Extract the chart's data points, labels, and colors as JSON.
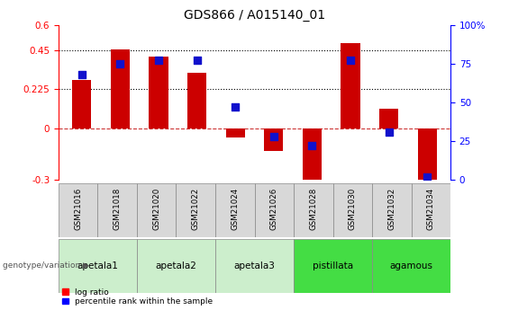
{
  "title": "GDS866 / A015140_01",
  "samples": [
    "GSM21016",
    "GSM21018",
    "GSM21020",
    "GSM21022",
    "GSM21024",
    "GSM21026",
    "GSM21028",
    "GSM21030",
    "GSM21032",
    "GSM21034"
  ],
  "log_ratio": [
    0.28,
    0.455,
    0.415,
    0.32,
    -0.055,
    -0.135,
    -0.34,
    0.495,
    0.115,
    -0.345
  ],
  "percentile_rank": [
    68,
    75,
    77,
    77,
    47,
    28,
    22,
    77,
    31,
    2
  ],
  "group_defs": [
    {
      "name": "apetala1",
      "cols": [
        0,
        1
      ],
      "color": "#cceecc"
    },
    {
      "name": "apetala2",
      "cols": [
        2,
        3
      ],
      "color": "#cceecc"
    },
    {
      "name": "apetala3",
      "cols": [
        4,
        5
      ],
      "color": "#cceecc"
    },
    {
      "name": "pistillata",
      "cols": [
        6,
        7
      ],
      "color": "#44dd44"
    },
    {
      "name": "agamous",
      "cols": [
        8,
        9
      ],
      "color": "#44dd44"
    }
  ],
  "ylim_left": [
    -0.3,
    0.6
  ],
  "ylim_right": [
    0,
    100
  ],
  "yticks_left": [
    -0.3,
    0,
    0.225,
    0.45,
    0.6
  ],
  "ytick_labels_left": [
    "-0.3",
    "0",
    "0.225",
    "0.45",
    "0.6"
  ],
  "yticks_right": [
    0,
    25,
    50,
    75,
    100
  ],
  "ytick_labels_right": [
    "0",
    "25",
    "50",
    "75",
    "100%"
  ],
  "hlines": [
    0.45,
    0.225
  ],
  "bar_color": "#cc0000",
  "dot_color": "#1111cc",
  "zero_line_color": "#cc3333",
  "bar_width": 0.5,
  "dot_size": 35,
  "legend_red": "log ratio",
  "legend_blue": "percentile rank within the sample",
  "genotype_label": "genotype/variation"
}
